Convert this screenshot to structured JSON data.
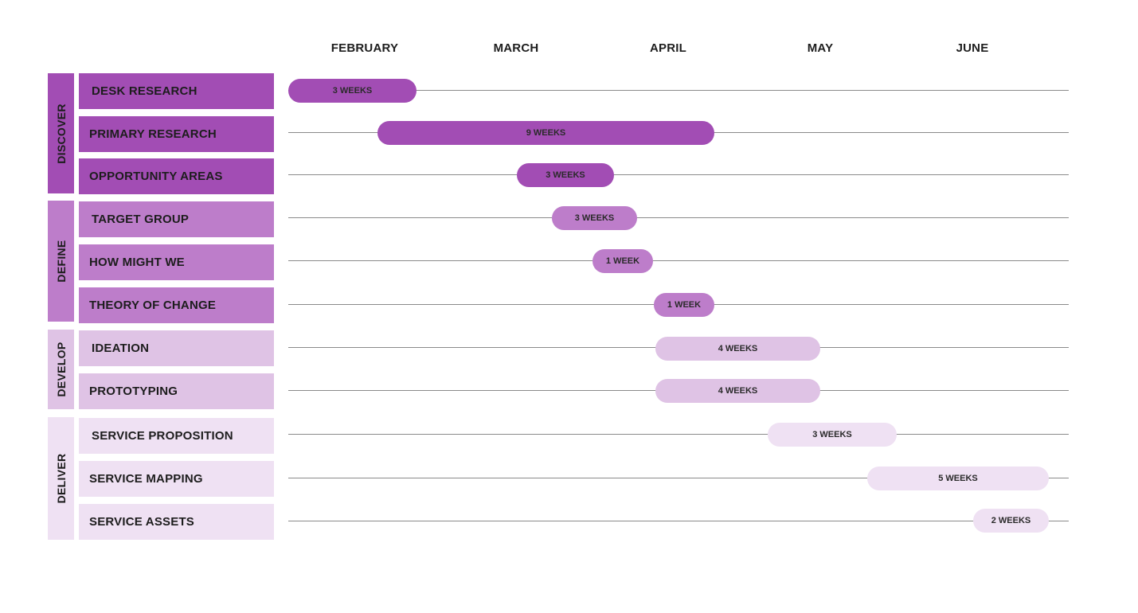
{
  "months": [
    "FEBRUARY",
    "MARCH",
    "APRIL",
    "MAY",
    "JUNE"
  ],
  "phases": [
    {
      "label": "DISCOVER",
      "color": "#a24db4"
    },
    {
      "label": "DEFINE",
      "color": "#bd7dca"
    },
    {
      "label": "DEVELOP",
      "color": "#dfc3e5"
    },
    {
      "label": "DELIVER",
      "color": "#efe1f3"
    }
  ],
  "tasks": [
    {
      "label": "DESK RESEARCH",
      "duration": "3 WEEKS"
    },
    {
      "label": "PRIMARY RESEARCH",
      "duration": "9 WEEKS"
    },
    {
      "label": "OPPORTUNITY AREAS",
      "duration": "3 WEEKS"
    },
    {
      "label": "TARGET GROUP",
      "duration": "3 WEEKS"
    },
    {
      "label": "HOW MIGHT WE",
      "duration": "1 WEEK"
    },
    {
      "label": "THEORY OF CHANGE",
      "duration": "1 WEEK"
    },
    {
      "label": "IDEATION",
      "duration": "4 WEEKS"
    },
    {
      "label": "PROTOTYPING",
      "duration": "4 WEEKS"
    },
    {
      "label": "SERVICE PROPOSITION",
      "duration": "3 WEEKS"
    },
    {
      "label": "SERVICE MAPPING",
      "duration": "5 WEEKS"
    },
    {
      "label": "SERVICE ASSETS",
      "duration": "2 WEEKS"
    }
  ]
}
